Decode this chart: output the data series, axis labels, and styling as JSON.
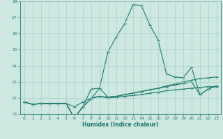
{
  "title": "",
  "xlabel": "Humidex (Indice chaleur)",
  "ylabel": "",
  "bg_color": "#cce8e0",
  "line_color": "#1a7a6e",
  "grid_color": "#aacfc8",
  "xlim": [
    -0.5,
    23.5
  ],
  "ylim": [
    11,
    18
  ],
  "xticks": [
    0,
    1,
    2,
    3,
    4,
    5,
    6,
    7,
    8,
    9,
    10,
    11,
    12,
    13,
    14,
    15,
    16,
    17,
    18,
    19,
    20,
    21,
    22,
    23
  ],
  "yticks": [
    11,
    12,
    13,
    14,
    15,
    16,
    17,
    18
  ],
  "series": [
    [
      11.75,
      11.6,
      11.65,
      11.65,
      11.65,
      11.65,
      11.45,
      11.75,
      12.0,
      12.1,
      12.0,
      12.05,
      12.1,
      12.15,
      12.2,
      12.3,
      12.35,
      12.45,
      12.5,
      12.55,
      12.6,
      12.65,
      12.7,
      12.7
    ],
    [
      11.75,
      11.6,
      11.65,
      11.65,
      11.65,
      11.65,
      10.75,
      11.45,
      11.95,
      12.1,
      12.05,
      12.1,
      12.2,
      12.3,
      12.4,
      12.5,
      12.6,
      12.7,
      12.8,
      12.9,
      13.0,
      12.2,
      12.55,
      12.75
    ],
    [
      11.75,
      11.6,
      11.65,
      11.65,
      11.65,
      11.65,
      10.75,
      11.45,
      12.55,
      12.6,
      14.85,
      15.8,
      16.6,
      17.8,
      17.75,
      16.55,
      15.6,
      13.5,
      13.3,
      13.25,
      13.9,
      12.2,
      12.55,
      12.75
    ],
    [
      11.75,
      11.6,
      11.65,
      11.65,
      11.65,
      11.65,
      10.75,
      11.45,
      11.95,
      12.6,
      12.05,
      12.1,
      12.2,
      12.3,
      12.4,
      12.5,
      12.6,
      12.75,
      12.85,
      13.0,
      13.1,
      13.2,
      13.25,
      13.3
    ]
  ]
}
